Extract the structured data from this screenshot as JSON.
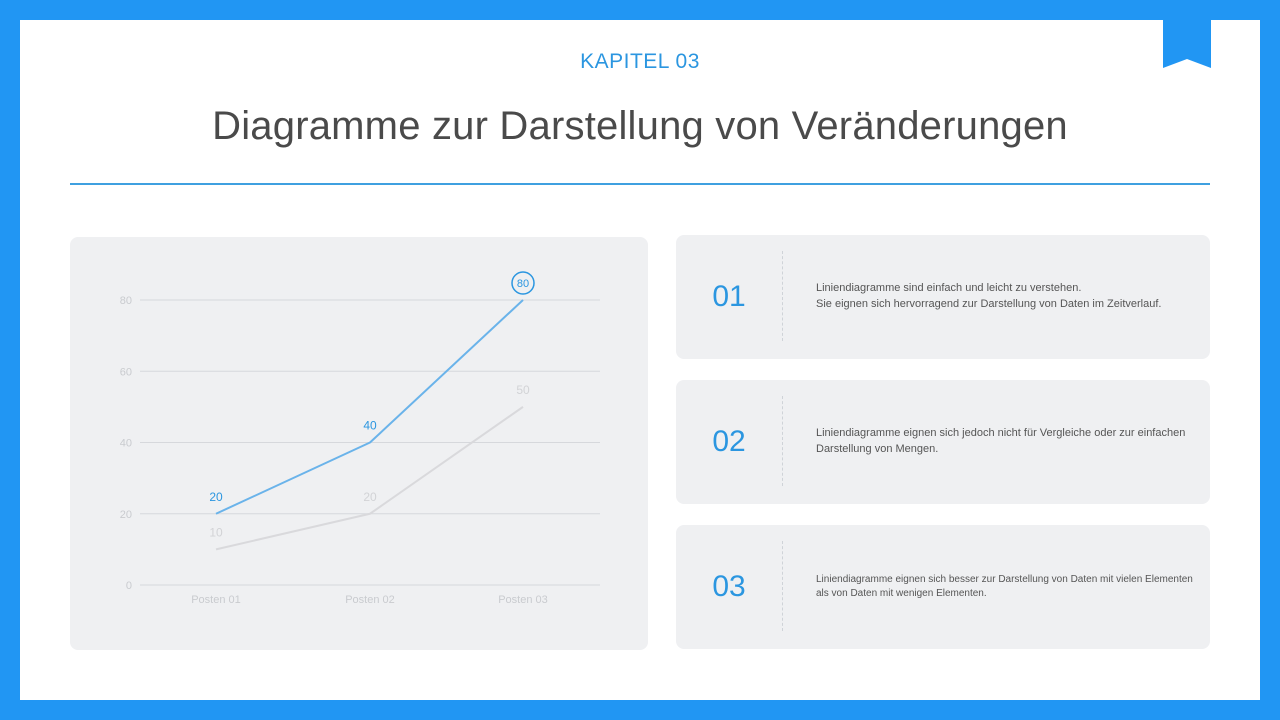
{
  "header": {
    "kicker": "KAPITEL 03",
    "title": "Diagramme zur Darstellung von Veränderungen"
  },
  "colors": {
    "frame": "#2196f3",
    "accent": "#2b96e0",
    "series_primary": "#6ab3ea",
    "series_secondary": "#d9d9dc",
    "panel": "#eff0f2"
  },
  "chart_data": {
    "type": "line",
    "categories": [
      "Posten 01",
      "Posten 02",
      "Posten 03"
    ],
    "series": [
      {
        "values": [
          20,
          40,
          80
        ]
      },
      {
        "values": [
          10,
          20,
          50
        ]
      }
    ],
    "y_ticks": [
      0,
      20,
      40,
      60,
      80
    ],
    "ylim": [
      0,
      80
    ],
    "grid": true,
    "highlight": {
      "series": 0,
      "index": 2
    }
  },
  "cards": [
    {
      "number": "01",
      "text": "Liniendiagramme sind einfach und leicht zu verstehen.\nSie eignen sich hervorragend zur Darstellung von Daten im Zeitverlauf."
    },
    {
      "number": "02",
      "text": "Liniendiagramme eignen sich jedoch nicht für Vergleiche oder zur einfachen\nDarstellung von Mengen."
    },
    {
      "number": "03",
      "text": "Liniendiagramme eignen sich besser zur Darstellung von Daten mit vielen Elementen\nals von Daten mit wenigen Elementen."
    }
  ]
}
